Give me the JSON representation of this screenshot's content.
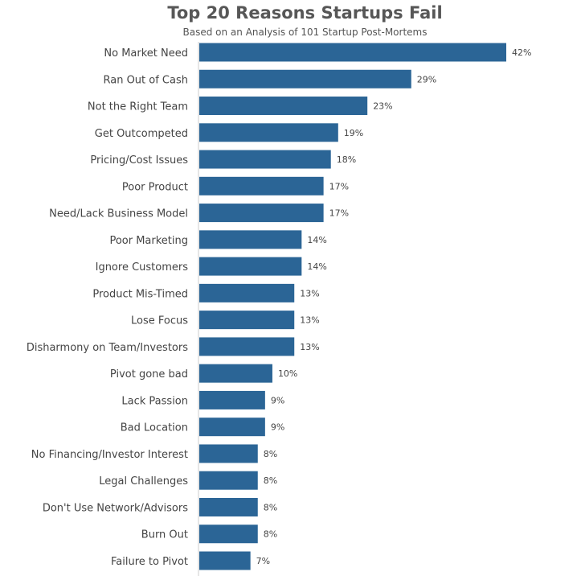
{
  "chart_data": {
    "type": "bar",
    "orientation": "horizontal",
    "title": "Top 20 Reasons Startups Fail",
    "subtitle": "Based on an Analysis of 101 Startup Post-Mortems",
    "xlabel": "",
    "ylabel": "",
    "categories": [
      "No Market Need",
      "Ran Out of Cash",
      "Not the Right Team",
      "Get Outcompeted",
      "Pricing/Cost Issues",
      "Poor Product",
      "Need/Lack Business Model",
      "Poor Marketing",
      "Ignore Customers",
      "Product Mis-Timed",
      "Lose Focus",
      "Disharmony on Team/Investors",
      "Pivot gone bad",
      "Lack Passion",
      "Bad Location",
      "No Financing/Investor Interest",
      "Legal Challenges",
      "Don't Use Network/Advisors",
      "Burn Out",
      "Failure to Pivot"
    ],
    "values": [
      42,
      29,
      23,
      19,
      18,
      17,
      17,
      14,
      14,
      13,
      13,
      13,
      10,
      9,
      9,
      8,
      8,
      8,
      8,
      7
    ],
    "data_labels": [
      "42%",
      "29%",
      "23%",
      "19%",
      "18%",
      "17%",
      "17%",
      "14%",
      "14%",
      "13%",
      "13%",
      "13%",
      "10%",
      "9%",
      "9%",
      "8%",
      "8%",
      "8%",
      "8%",
      "7%"
    ],
    "xlim": [
      0,
      42
    ],
    "grid": false,
    "legend": "none",
    "bar_color": "#2b6596"
  }
}
